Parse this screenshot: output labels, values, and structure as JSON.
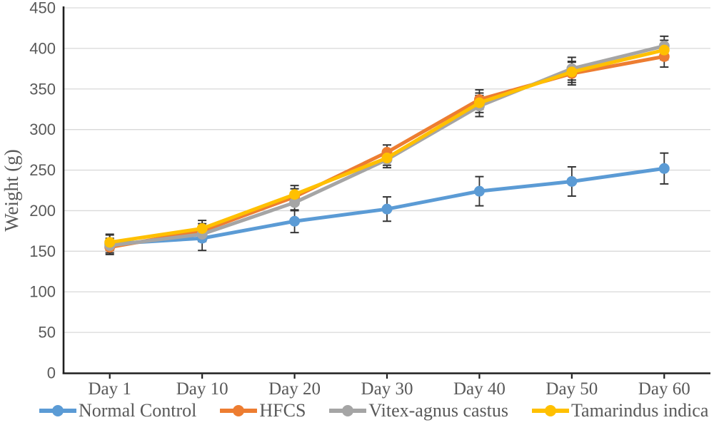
{
  "figure": {
    "y_axis_title": "Weight (g)"
  },
  "chart_data": {
    "type": "line",
    "title": "",
    "xlabel": "",
    "ylabel": "Weight (g)",
    "ylim": [
      0,
      450
    ],
    "ytick_step": 50,
    "yticks": [
      0,
      50,
      100,
      150,
      200,
      250,
      300,
      350,
      400,
      450
    ],
    "grid": "horizontal",
    "legend_position": "bottom",
    "marker": "circle",
    "error_bars": true,
    "categories": [
      "Day 1",
      "Day 10",
      "Day 20",
      "Day 30",
      "Day 40",
      "Day 50",
      "Day 60"
    ],
    "series": [
      {
        "name": "Normal Control",
        "color": "#5B9BD5",
        "values": [
          159,
          166,
          187,
          202,
          224,
          236,
          252
        ],
        "errors": [
          11,
          15,
          14,
          15,
          18,
          18,
          19
        ]
      },
      {
        "name": "HFCS",
        "color": "#ED7D31",
        "values": [
          155,
          175,
          217,
          272,
          337,
          369,
          390
        ],
        "errors": [
          9,
          9,
          10,
          9,
          12,
          14,
          13
        ]
      },
      {
        "name": "Vitex-agnus castus",
        "color": "#A5A5A5",
        "values": [
          157,
          171,
          210,
          263,
          329,
          375,
          403
        ],
        "errors": [
          9,
          9,
          10,
          10,
          13,
          14,
          12
        ]
      },
      {
        "name": "Tamarindus indica",
        "color": "#FFC000",
        "values": [
          161,
          178,
          220,
          265,
          333,
          371,
          398
        ],
        "errors": [
          10,
          10,
          11,
          9,
          12,
          13,
          12
        ]
      }
    ],
    "colors": {
      "axis": "#1f1f1f",
      "gridline": "#D9D9D9",
      "tick_label": "#595959",
      "error_bar": "#333333"
    }
  }
}
